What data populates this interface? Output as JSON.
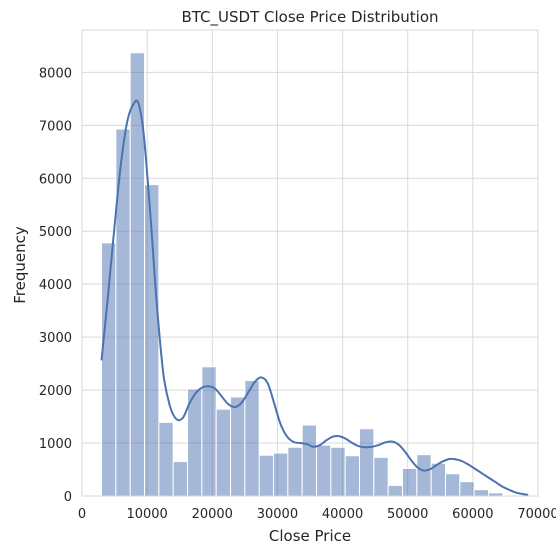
{
  "chart_data": {
    "type": "bar",
    "title": "BTC_USDT Close Price Distribution",
    "xlabel": "Close Price",
    "ylabel": "Frequency",
    "xlim": [
      0,
      70000
    ],
    "ylim": [
      0,
      8800
    ],
    "xticks": [
      0,
      10000,
      20000,
      30000,
      40000,
      50000,
      60000,
      70000
    ],
    "yticks": [
      0,
      1000,
      2000,
      3000,
      4000,
      5000,
      6000,
      7000,
      8000
    ],
    "grid": true,
    "bar_color": "#4c72b0",
    "kde_color": "#4c72b0",
    "bin_start": 3000,
    "bin_width": 2200,
    "counts": [
      4780,
      6930,
      8370,
      5880,
      1390,
      650,
      2020,
      2440,
      1640,
      1870,
      2180,
      770,
      810,
      920,
      1340,
      960,
      920,
      760,
      1270,
      730,
      200,
      520,
      780,
      620,
      420,
      270,
      120,
      60
    ],
    "kde": {
      "x": [
        3000,
        4000,
        5000,
        6000,
        7000,
        8000,
        8700,
        9500,
        10500,
        11500,
        12500,
        13500,
        14500,
        15500,
        16500,
        17500,
        18500,
        19500,
        20500,
        21500,
        22500,
        23500,
        24500,
        25500,
        26500,
        27500,
        28500,
        29500,
        30500,
        31500,
        32500,
        33500,
        34500,
        35500,
        36500,
        37500,
        38500,
        39500,
        40500,
        41500,
        42500,
        43500,
        44500,
        45500,
        46500,
        47500,
        48500,
        49500,
        50500,
        51500,
        52500,
        53500,
        54500,
        55500,
        56500,
        57500,
        58500,
        59500,
        60500,
        61500,
        62500,
        63500,
        64500,
        65500,
        66500,
        67500,
        68500
      ],
      "y": [
        2560,
        3800,
        5100,
        6300,
        7100,
        7420,
        7400,
        6800,
        5300,
        3600,
        2300,
        1700,
        1450,
        1480,
        1750,
        1950,
        2050,
        2070,
        2020,
        1870,
        1730,
        1680,
        1760,
        1950,
        2150,
        2240,
        2130,
        1750,
        1350,
        1120,
        1020,
        1000,
        980,
        930,
        960,
        1050,
        1120,
        1130,
        1080,
        1000,
        940,
        920,
        930,
        960,
        1010,
        1030,
        980,
        850,
        680,
        540,
        480,
        510,
        590,
        660,
        700,
        690,
        650,
        580,
        500,
        420,
        340,
        260,
        180,
        120,
        70,
        40,
        20
      ]
    }
  }
}
